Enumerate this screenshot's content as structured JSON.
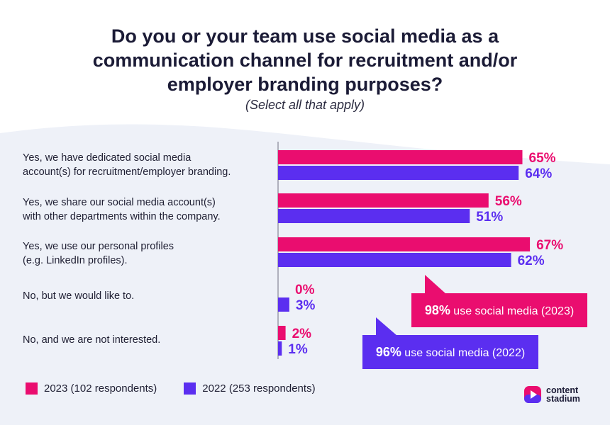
{
  "header": {
    "title_lines": [
      "Do you or your team use social media as a",
      "communication channel for recruitment and/or",
      "employer branding purposes?"
    ],
    "subtitle": "(Select all that apply)"
  },
  "colors": {
    "series_2023": "#ea0d6f",
    "series_2022": "#5b2ef0",
    "axis": "#9a9aa8",
    "wave": "#eef1f8"
  },
  "chart_data": {
    "type": "bar",
    "orientation": "horizontal",
    "categories": [
      [
        "Yes, we have dedicated social media",
        "account(s) for recruitment/employer branding."
      ],
      [
        "Yes, we share our social media account(s)",
        "with other departments within the company."
      ],
      [
        "Yes, we use our personal profiles",
        "(e.g. LinkedIn profiles)."
      ],
      [
        "No, but we would like to."
      ],
      [
        "No, and we are not interested."
      ]
    ],
    "series": [
      {
        "name": "2023 (102 respondents)",
        "values": [
          65,
          56,
          67,
          0,
          2
        ]
      },
      {
        "name": "2022 (253 respondents)",
        "values": [
          64,
          51,
          62,
          3,
          1
        ]
      }
    ],
    "value_labels": [
      [
        "65%",
        "56%",
        "67%",
        "0%",
        "2%"
      ],
      [
        "64%",
        "51%",
        "62%",
        "3%",
        "1%"
      ]
    ],
    "xlim": [
      0,
      100
    ],
    "legend_position": "bottom-left"
  },
  "callouts": [
    {
      "bold": "98%",
      "text": " use social media (2023)"
    },
    {
      "bold": "96%",
      "text": " use social media (2022)"
    }
  ],
  "logo": {
    "line1": "content",
    "line2": "stadium"
  }
}
